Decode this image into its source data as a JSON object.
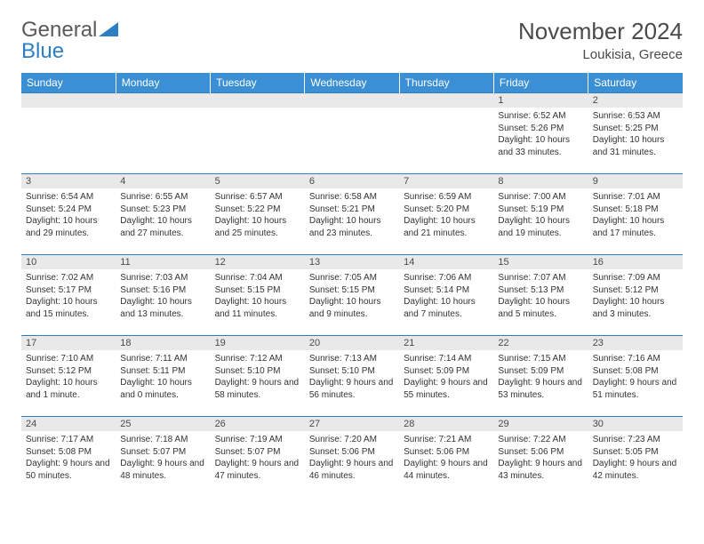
{
  "logo": {
    "text1": "General",
    "text2": "Blue"
  },
  "title": "November 2024",
  "location": "Loukisia, Greece",
  "columns": [
    "Sunday",
    "Monday",
    "Tuesday",
    "Wednesday",
    "Thursday",
    "Friday",
    "Saturday"
  ],
  "colors": {
    "header_bg": "#3b8fd4",
    "header_text": "#ffffff",
    "daynum_bg": "#e9e9e9",
    "row_border": "#2d7fc4",
    "logo_gray": "#5a5a5a",
    "logo_blue": "#2d7fc4"
  },
  "weeks": [
    [
      {
        "n": "",
        "sr": "",
        "ss": "",
        "dl": ""
      },
      {
        "n": "",
        "sr": "",
        "ss": "",
        "dl": ""
      },
      {
        "n": "",
        "sr": "",
        "ss": "",
        "dl": ""
      },
      {
        "n": "",
        "sr": "",
        "ss": "",
        "dl": ""
      },
      {
        "n": "",
        "sr": "",
        "ss": "",
        "dl": ""
      },
      {
        "n": "1",
        "sr": "Sunrise: 6:52 AM",
        "ss": "Sunset: 5:26 PM",
        "dl": "Daylight: 10 hours and 33 minutes."
      },
      {
        "n": "2",
        "sr": "Sunrise: 6:53 AM",
        "ss": "Sunset: 5:25 PM",
        "dl": "Daylight: 10 hours and 31 minutes."
      }
    ],
    [
      {
        "n": "3",
        "sr": "Sunrise: 6:54 AM",
        "ss": "Sunset: 5:24 PM",
        "dl": "Daylight: 10 hours and 29 minutes."
      },
      {
        "n": "4",
        "sr": "Sunrise: 6:55 AM",
        "ss": "Sunset: 5:23 PM",
        "dl": "Daylight: 10 hours and 27 minutes."
      },
      {
        "n": "5",
        "sr": "Sunrise: 6:57 AM",
        "ss": "Sunset: 5:22 PM",
        "dl": "Daylight: 10 hours and 25 minutes."
      },
      {
        "n": "6",
        "sr": "Sunrise: 6:58 AM",
        "ss": "Sunset: 5:21 PM",
        "dl": "Daylight: 10 hours and 23 minutes."
      },
      {
        "n": "7",
        "sr": "Sunrise: 6:59 AM",
        "ss": "Sunset: 5:20 PM",
        "dl": "Daylight: 10 hours and 21 minutes."
      },
      {
        "n": "8",
        "sr": "Sunrise: 7:00 AM",
        "ss": "Sunset: 5:19 PM",
        "dl": "Daylight: 10 hours and 19 minutes."
      },
      {
        "n": "9",
        "sr": "Sunrise: 7:01 AM",
        "ss": "Sunset: 5:18 PM",
        "dl": "Daylight: 10 hours and 17 minutes."
      }
    ],
    [
      {
        "n": "10",
        "sr": "Sunrise: 7:02 AM",
        "ss": "Sunset: 5:17 PM",
        "dl": "Daylight: 10 hours and 15 minutes."
      },
      {
        "n": "11",
        "sr": "Sunrise: 7:03 AM",
        "ss": "Sunset: 5:16 PM",
        "dl": "Daylight: 10 hours and 13 minutes."
      },
      {
        "n": "12",
        "sr": "Sunrise: 7:04 AM",
        "ss": "Sunset: 5:15 PM",
        "dl": "Daylight: 10 hours and 11 minutes."
      },
      {
        "n": "13",
        "sr": "Sunrise: 7:05 AM",
        "ss": "Sunset: 5:15 PM",
        "dl": "Daylight: 10 hours and 9 minutes."
      },
      {
        "n": "14",
        "sr": "Sunrise: 7:06 AM",
        "ss": "Sunset: 5:14 PM",
        "dl": "Daylight: 10 hours and 7 minutes."
      },
      {
        "n": "15",
        "sr": "Sunrise: 7:07 AM",
        "ss": "Sunset: 5:13 PM",
        "dl": "Daylight: 10 hours and 5 minutes."
      },
      {
        "n": "16",
        "sr": "Sunrise: 7:09 AM",
        "ss": "Sunset: 5:12 PM",
        "dl": "Daylight: 10 hours and 3 minutes."
      }
    ],
    [
      {
        "n": "17",
        "sr": "Sunrise: 7:10 AM",
        "ss": "Sunset: 5:12 PM",
        "dl": "Daylight: 10 hours and 1 minute."
      },
      {
        "n": "18",
        "sr": "Sunrise: 7:11 AM",
        "ss": "Sunset: 5:11 PM",
        "dl": "Daylight: 10 hours and 0 minutes."
      },
      {
        "n": "19",
        "sr": "Sunrise: 7:12 AM",
        "ss": "Sunset: 5:10 PM",
        "dl": "Daylight: 9 hours and 58 minutes."
      },
      {
        "n": "20",
        "sr": "Sunrise: 7:13 AM",
        "ss": "Sunset: 5:10 PM",
        "dl": "Daylight: 9 hours and 56 minutes."
      },
      {
        "n": "21",
        "sr": "Sunrise: 7:14 AM",
        "ss": "Sunset: 5:09 PM",
        "dl": "Daylight: 9 hours and 55 minutes."
      },
      {
        "n": "22",
        "sr": "Sunrise: 7:15 AM",
        "ss": "Sunset: 5:09 PM",
        "dl": "Daylight: 9 hours and 53 minutes."
      },
      {
        "n": "23",
        "sr": "Sunrise: 7:16 AM",
        "ss": "Sunset: 5:08 PM",
        "dl": "Daylight: 9 hours and 51 minutes."
      }
    ],
    [
      {
        "n": "24",
        "sr": "Sunrise: 7:17 AM",
        "ss": "Sunset: 5:08 PM",
        "dl": "Daylight: 9 hours and 50 minutes."
      },
      {
        "n": "25",
        "sr": "Sunrise: 7:18 AM",
        "ss": "Sunset: 5:07 PM",
        "dl": "Daylight: 9 hours and 48 minutes."
      },
      {
        "n": "26",
        "sr": "Sunrise: 7:19 AM",
        "ss": "Sunset: 5:07 PM",
        "dl": "Daylight: 9 hours and 47 minutes."
      },
      {
        "n": "27",
        "sr": "Sunrise: 7:20 AM",
        "ss": "Sunset: 5:06 PM",
        "dl": "Daylight: 9 hours and 46 minutes."
      },
      {
        "n": "28",
        "sr": "Sunrise: 7:21 AM",
        "ss": "Sunset: 5:06 PM",
        "dl": "Daylight: 9 hours and 44 minutes."
      },
      {
        "n": "29",
        "sr": "Sunrise: 7:22 AM",
        "ss": "Sunset: 5:06 PM",
        "dl": "Daylight: 9 hours and 43 minutes."
      },
      {
        "n": "30",
        "sr": "Sunrise: 7:23 AM",
        "ss": "Sunset: 5:05 PM",
        "dl": "Daylight: 9 hours and 42 minutes."
      }
    ]
  ]
}
